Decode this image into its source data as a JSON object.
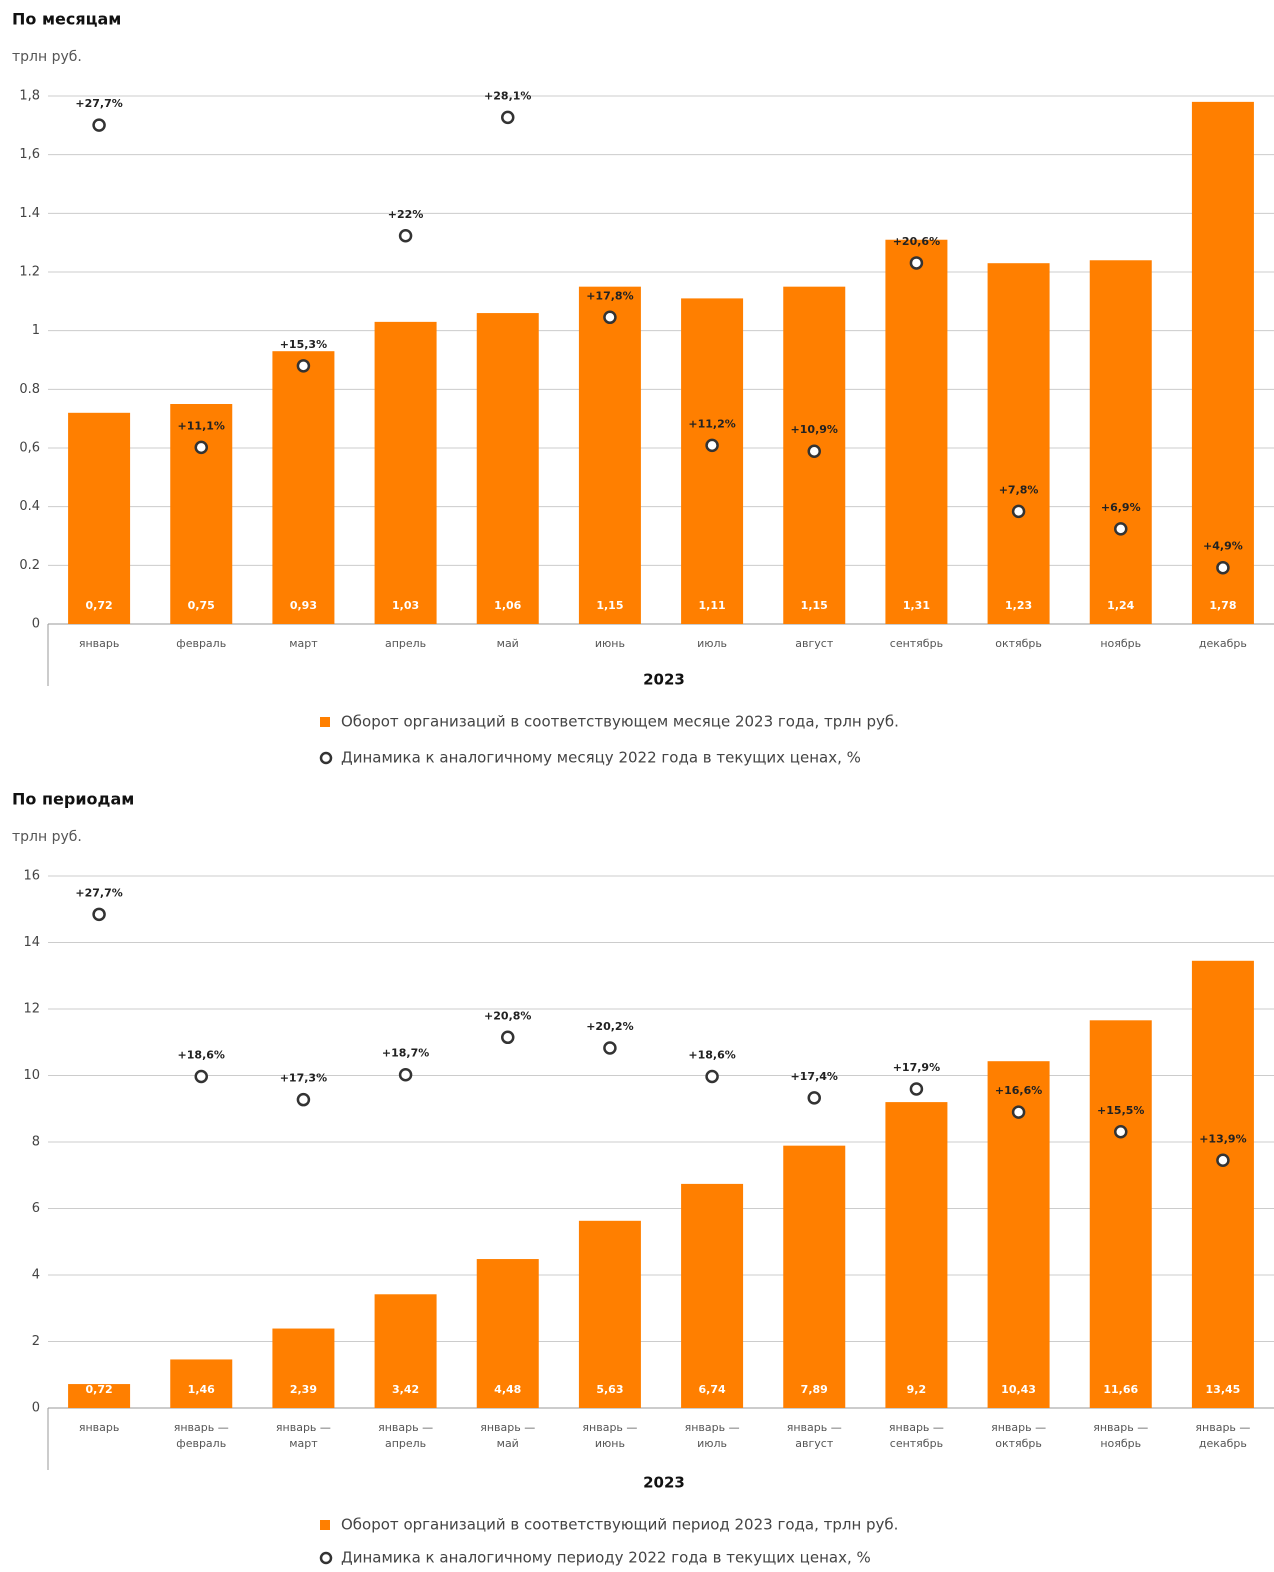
{
  "chart_data": [
    {
      "type": "bar",
      "title": "По месяцам",
      "ylabel": "трлн руб.",
      "xlabel": "2023",
      "categories": [
        "январь",
        "февраль",
        "март",
        "апрель",
        "май",
        "июнь",
        "июль",
        "август",
        "сентябрь",
        "октябрь",
        "ноябрь",
        "декабрь"
      ],
      "ylim": [
        0,
        1.8
      ],
      "yticks": [
        0,
        0.2,
        0.4,
        {
          "value": 0.6,
          "label": "0,6"
        },
        0.8,
        1,
        1.2,
        1.4,
        {
          "value": 1.6,
          "label": "1,6"
        },
        {
          "value": 1.8,
          "label": "1,8"
        }
      ],
      "y2lim": [
        2,
        29.2
      ],
      "grid": true,
      "series": [
        {
          "name": "Оборот организаций в соответствующем месяце 2023 года, трлн руб.",
          "type": "bar",
          "color": "#ff7f00",
          "values": [
            0.72,
            0.75,
            0.93,
            1.03,
            1.06,
            1.15,
            1.11,
            1.15,
            1.31,
            1.23,
            1.24,
            1.78
          ],
          "value_labels": [
            "0,72",
            "0,75",
            "0,93",
            "1,03",
            "1,06",
            "1,15",
            "1,11",
            "1,15",
            "1,31",
            "1,23",
            "1,24",
            "1,78"
          ]
        },
        {
          "name": "Динамика к аналогичному месяцу 2022 года в текущих ценах, %",
          "type": "scatter",
          "axis": "y2",
          "color": "#333333",
          "values": [
            27.7,
            11.1,
            15.3,
            22,
            28.1,
            17.8,
            11.2,
            10.9,
            20.6,
            7.8,
            6.9,
            4.9
          ],
          "value_labels": [
            "+27,7%",
            "+11,1%",
            "+15,3%",
            "+22%",
            "+28,1%",
            "+17,8%",
            "+11,2%",
            "+10,9%",
            "+20,6%",
            "+7,8%",
            "+6,9%",
            "+4,9%"
          ]
        }
      ]
    },
    {
      "type": "bar",
      "title": "По периодам",
      "ylabel": "трлн руб.",
      "xlabel": "2023",
      "categories": [
        "январь",
        "январь — февраль",
        "январь — март",
        "январь — апрель",
        "январь — май",
        "январь — июнь",
        "январь — июль",
        "январь — август",
        "январь — сентябрь",
        "январь — октябрь",
        "январь — ноябрь",
        "январь — декабрь"
      ],
      "ylim": [
        0,
        16
      ],
      "yticks": [
        0,
        2,
        4,
        6,
        8,
        10,
        12,
        14,
        16
      ],
      "y2lim": [
        0,
        29.85
      ],
      "grid": true,
      "series": [
        {
          "name": "Оборот организаций в соответствующий период 2023 года, трлн руб.",
          "type": "bar",
          "color": "#ff7f00",
          "values": [
            0.72,
            1.46,
            2.39,
            3.42,
            4.48,
            5.63,
            6.74,
            7.89,
            9.2,
            10.43,
            11.66,
            13.45
          ],
          "value_labels": [
            "0,72",
            "1,46",
            "2,39",
            "3,42",
            "4,48",
            "5,63",
            "6,74",
            "7,89",
            "9,2",
            "10,43",
            "11,66",
            "13,45"
          ]
        },
        {
          "name": "Динамика к аналогичному периоду 2022 года в текущих ценах, %",
          "type": "scatter",
          "axis": "y2",
          "color": "#333333",
          "values": [
            27.7,
            18.6,
            17.3,
            18.7,
            20.8,
            20.2,
            18.6,
            17.4,
            17.9,
            16.6,
            15.5,
            13.9
          ],
          "value_labels": [
            "+27,7%",
            "+18,6%",
            "+17,3%",
            "+18,7%",
            "+20,8%",
            "+20,2%",
            "+18,6%",
            "+17,4%",
            "+17,9%",
            "+16,6%",
            "+15,5%",
            "+13,9%"
          ]
        }
      ]
    }
  ]
}
